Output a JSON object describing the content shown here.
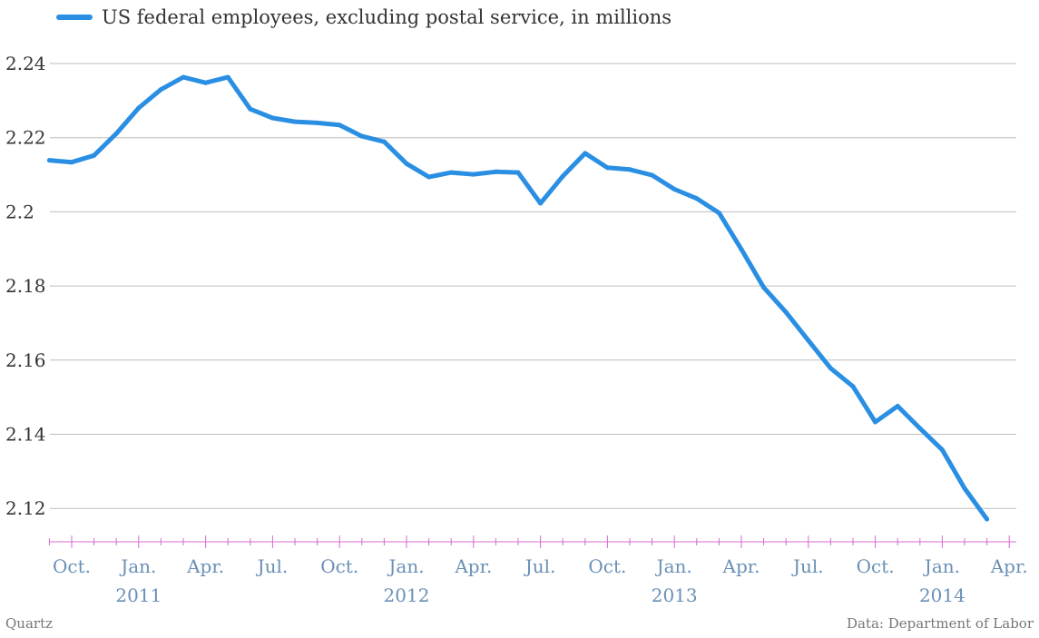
{
  "legend": {
    "label": "US federal employees, excluding postal service, in millions",
    "color": "#2a8fe3"
  },
  "footer": {
    "left": "Quartz",
    "right": "Data: Department of Labor"
  },
  "colors": {
    "line": "#2a8fe3",
    "grid": "#bdbdbd",
    "axis": "#d46bd0",
    "tick_text": "#6a90b6"
  },
  "chart_data": {
    "type": "line",
    "xlabel": "",
    "ylabel": "",
    "ylim": [
      2.11,
      2.245
    ],
    "yticks": [
      "2.12",
      "2.14",
      "2.16",
      "2.18",
      "2.2",
      "2.22",
      "2.24"
    ],
    "grid": true,
    "legend_position": "top-left",
    "x_month_range": [
      "2010-09",
      "2014-04"
    ],
    "xtick_labels": [
      {
        "month": "2010-10",
        "label": "Oct.",
        "year": ""
      },
      {
        "month": "2011-01",
        "label": "Jan.",
        "year": "2011"
      },
      {
        "month": "2011-04",
        "label": "Apr.",
        "year": ""
      },
      {
        "month": "2011-07",
        "label": "Jul.",
        "year": ""
      },
      {
        "month": "2011-10",
        "label": "Oct.",
        "year": ""
      },
      {
        "month": "2012-01",
        "label": "Jan.",
        "year": "2012"
      },
      {
        "month": "2012-04",
        "label": "Apr.",
        "year": ""
      },
      {
        "month": "2012-07",
        "label": "Jul.",
        "year": ""
      },
      {
        "month": "2012-10",
        "label": "Oct.",
        "year": ""
      },
      {
        "month": "2013-01",
        "label": "Jan.",
        "year": "2013"
      },
      {
        "month": "2013-04",
        "label": "Apr.",
        "year": ""
      },
      {
        "month": "2013-07",
        "label": "Jul.",
        "year": ""
      },
      {
        "month": "2013-10",
        "label": "Oct.",
        "year": ""
      },
      {
        "month": "2014-01",
        "label": "Jan.",
        "year": "2014"
      },
      {
        "month": "2014-04",
        "label": "Apr.",
        "year": ""
      }
    ],
    "series": [
      {
        "name": "US federal employees, excluding postal service, in millions",
        "x": [
          "2010-09",
          "2010-10",
          "2010-11",
          "2010-12",
          "2011-01",
          "2011-02",
          "2011-03",
          "2011-04",
          "2011-05",
          "2011-06",
          "2011-07",
          "2011-08",
          "2011-09",
          "2011-10",
          "2011-11",
          "2011-12",
          "2012-01",
          "2012-02",
          "2012-03",
          "2012-04",
          "2012-05",
          "2012-06",
          "2012-07",
          "2012-08",
          "2012-09",
          "2012-10",
          "2012-11",
          "2012-12",
          "2013-01",
          "2013-02",
          "2013-03",
          "2013-04",
          "2013-05",
          "2013-06",
          "2013-07",
          "2013-08",
          "2013-09",
          "2013-10",
          "2013-11",
          "2013-12",
          "2014-01",
          "2014-02",
          "2014-03"
        ],
        "values": [
          2.2139,
          2.2134,
          2.2152,
          2.2211,
          2.228,
          2.233,
          2.2363,
          2.2348,
          2.2363,
          2.2277,
          2.2253,
          2.2243,
          2.224,
          2.2234,
          2.2204,
          2.2189,
          2.213,
          2.2094,
          2.2106,
          2.2101,
          2.2108,
          2.2106,
          2.2023,
          2.2096,
          2.2158,
          2.2119,
          2.2114,
          2.2099,
          2.2061,
          2.2036,
          2.1997,
          2.1899,
          2.1796,
          2.1729,
          2.1653,
          2.1578,
          2.1529,
          2.1433,
          2.1476,
          2.1416,
          2.1358,
          2.1254,
          2.1171
        ]
      }
    ]
  }
}
